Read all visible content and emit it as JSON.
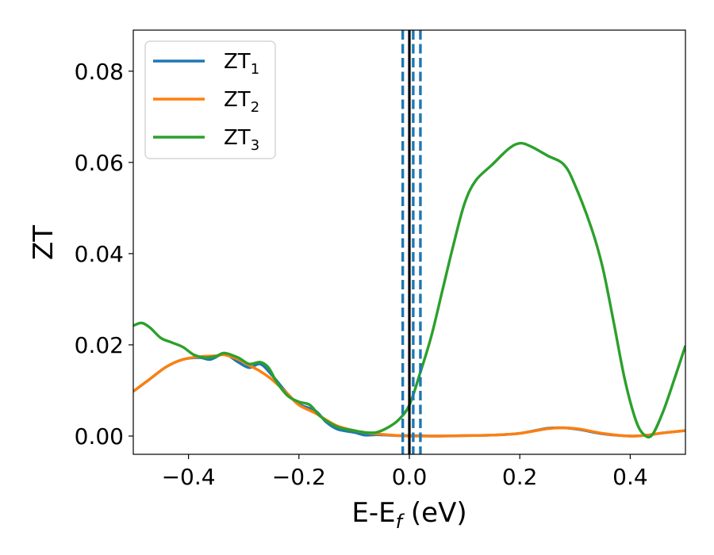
{
  "chart_data": {
    "type": "line",
    "xlabel": "E-E",
    "xlabel_sub": "f",
    "xlabel_unit": " (eV)",
    "ylabel": "ZT",
    "xlim": [
      -0.5,
      0.5
    ],
    "ylim": [
      -0.004,
      0.089
    ],
    "xticks": [
      -0.4,
      -0.2,
      0.0,
      0.2,
      0.4
    ],
    "xtick_labels": [
      "−0.4",
      "−0.2",
      "0.0",
      "0.2",
      "0.4"
    ],
    "yticks": [
      0.0,
      0.02,
      0.04,
      0.06,
      0.08
    ],
    "ytick_labels": [
      "0.00",
      "0.02",
      "0.04",
      "0.06",
      "0.08"
    ],
    "grid": false,
    "legend_position": "top-left",
    "vlines": [
      {
        "x": 0.0,
        "style": "solid",
        "color": "#000000"
      },
      {
        "x": -0.012,
        "style": "dashed",
        "color": "#1f77b4"
      },
      {
        "x": 0.007,
        "style": "dashed",
        "color": "#1f77b4"
      },
      {
        "x": 0.02,
        "style": "dashed",
        "color": "#1f77b4"
      }
    ],
    "series": [
      {
        "name": "ZT",
        "name_sub": "1",
        "color": "#1f77b4",
        "points": [
          [
            -0.5,
            0.0098
          ],
          [
            -0.47,
            0.0125
          ],
          [
            -0.44,
            0.0152
          ],
          [
            -0.41,
            0.0168
          ],
          [
            -0.38,
            0.0172
          ],
          [
            -0.36,
            0.0168
          ],
          [
            -0.335,
            0.018
          ],
          [
            -0.31,
            0.0162
          ],
          [
            -0.29,
            0.015
          ],
          [
            -0.27,
            0.0158
          ],
          [
            -0.25,
            0.0135
          ],
          [
            -0.22,
            0.0092
          ],
          [
            -0.2,
            0.007
          ],
          [
            -0.17,
            0.0055
          ],
          [
            -0.15,
            0.003
          ],
          [
            -0.13,
            0.0015
          ],
          [
            -0.1,
            0.0008
          ],
          [
            -0.08,
            0.0002
          ],
          [
            -0.06,
            0.0003
          ],
          [
            -0.04,
            0.0002
          ],
          [
            -0.02,
            0.0001
          ],
          [
            0.0,
            0.0001
          ],
          [
            0.05,
            0.0
          ],
          [
            0.1,
            0.0001
          ],
          [
            0.15,
            0.0002
          ],
          [
            0.2,
            0.0006
          ],
          [
            0.25,
            0.0017
          ],
          [
            0.28,
            0.0018
          ],
          [
            0.31,
            0.0014
          ],
          [
            0.35,
            0.0005
          ],
          [
            0.4,
            0.0
          ],
          [
            0.43,
            0.0002
          ],
          [
            0.46,
            0.0007
          ],
          [
            0.5,
            0.0012
          ]
        ]
      },
      {
        "name": "ZT",
        "name_sub": "2",
        "color": "#ff7f0e",
        "points": [
          [
            -0.5,
            0.0098
          ],
          [
            -0.47,
            0.0125
          ],
          [
            -0.44,
            0.0152
          ],
          [
            -0.41,
            0.0168
          ],
          [
            -0.38,
            0.0174
          ],
          [
            -0.35,
            0.0176
          ],
          [
            -0.335,
            0.0178
          ],
          [
            -0.31,
            0.0168
          ],
          [
            -0.29,
            0.0155
          ],
          [
            -0.27,
            0.0142
          ],
          [
            -0.25,
            0.0125
          ],
          [
            -0.22,
            0.0092
          ],
          [
            -0.2,
            0.0068
          ],
          [
            -0.17,
            0.005
          ],
          [
            -0.15,
            0.0035
          ],
          [
            -0.13,
            0.0022
          ],
          [
            -0.1,
            0.0012
          ],
          [
            -0.07,
            0.0006
          ],
          [
            -0.04,
            0.0003
          ],
          [
            -0.02,
            0.0001
          ],
          [
            0.0,
            0.0
          ],
          [
            0.05,
            0.0
          ],
          [
            0.1,
            0.0001
          ],
          [
            0.15,
            0.0002
          ],
          [
            0.2,
            0.0006
          ],
          [
            0.25,
            0.0016
          ],
          [
            0.28,
            0.0018
          ],
          [
            0.31,
            0.0015
          ],
          [
            0.35,
            0.0006
          ],
          [
            0.4,
            0.0
          ],
          [
            0.43,
            0.0002
          ],
          [
            0.46,
            0.0007
          ],
          [
            0.5,
            0.0012
          ]
        ]
      },
      {
        "name": "ZT",
        "name_sub": "3",
        "color": "#2ca02c",
        "points": [
          [
            -0.5,
            0.0242
          ],
          [
            -0.485,
            0.0248
          ],
          [
            -0.47,
            0.0238
          ],
          [
            -0.45,
            0.0215
          ],
          [
            -0.43,
            0.0205
          ],
          [
            -0.41,
            0.0195
          ],
          [
            -0.39,
            0.0178
          ],
          [
            -0.37,
            0.0172
          ],
          [
            -0.35,
            0.0175
          ],
          [
            -0.335,
            0.0182
          ],
          [
            -0.31,
            0.0172
          ],
          [
            -0.29,
            0.0158
          ],
          [
            -0.27,
            0.0162
          ],
          [
            -0.255,
            0.015
          ],
          [
            -0.24,
            0.0118
          ],
          [
            -0.22,
            0.0088
          ],
          [
            -0.2,
            0.0075
          ],
          [
            -0.18,
            0.0068
          ],
          [
            -0.16,
            0.0042
          ],
          [
            -0.13,
            0.002
          ],
          [
            -0.1,
            0.0012
          ],
          [
            -0.08,
            0.0008
          ],
          [
            -0.06,
            0.0008
          ],
          [
            -0.04,
            0.0018
          ],
          [
            -0.02,
            0.0035
          ],
          [
            0.0,
            0.0068
          ],
          [
            0.02,
            0.014
          ],
          [
            0.04,
            0.022
          ],
          [
            0.06,
            0.032
          ],
          [
            0.08,
            0.042
          ],
          [
            0.1,
            0.051
          ],
          [
            0.12,
            0.056
          ],
          [
            0.15,
            0.0595
          ],
          [
            0.18,
            0.063
          ],
          [
            0.2,
            0.0642
          ],
          [
            0.22,
            0.0635
          ],
          [
            0.25,
            0.0615
          ],
          [
            0.28,
            0.0595
          ],
          [
            0.3,
            0.055
          ],
          [
            0.33,
            0.0455
          ],
          [
            0.35,
            0.037
          ],
          [
            0.37,
            0.025
          ],
          [
            0.39,
            0.0125
          ],
          [
            0.41,
            0.0035
          ],
          [
            0.425,
            0.0003
          ],
          [
            0.44,
            0.0003
          ],
          [
            0.46,
            0.0055
          ],
          [
            0.48,
            0.0125
          ],
          [
            0.5,
            0.0198
          ]
        ]
      }
    ]
  }
}
